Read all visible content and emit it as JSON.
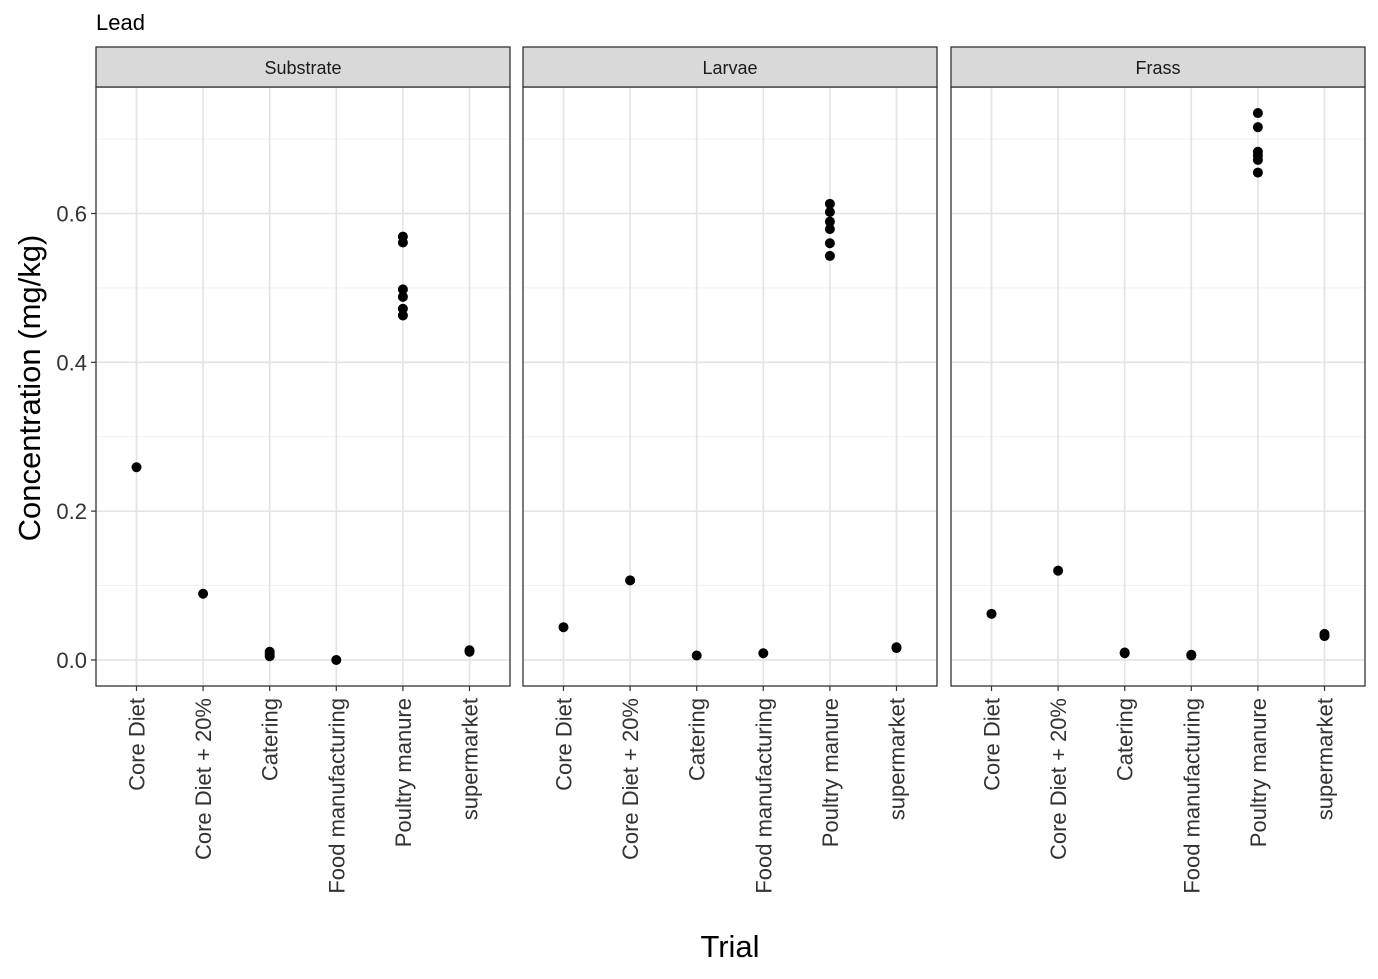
{
  "chart_data": {
    "type": "scatter",
    "title": "Lead",
    "xlabel": "Trial",
    "ylabel": "Concentration (mg/kg)",
    "ylim": [
      -0.035,
      0.77
    ],
    "yticks": [
      "0.0",
      "0.2",
      "0.4",
      "0.6"
    ],
    "ytick_values": [
      0.0,
      0.2,
      0.4,
      0.6
    ],
    "categories": [
      "Core Diet",
      "Core Diet + 20%",
      "Catering",
      "Food manufacturing",
      "Poultry manure",
      "supermarket"
    ],
    "grid": true,
    "legend": "none",
    "point_color": "#000000",
    "panels": [
      {
        "name": "Substrate",
        "points": [
          {
            "category": "Core Diet",
            "values": [
              0.259
            ]
          },
          {
            "category": "Core Diet + 20%",
            "values": [
              0.089
            ]
          },
          {
            "category": "Catering",
            "values": [
              0.011,
              0.008,
              0.005
            ]
          },
          {
            "category": "Food manufacturing",
            "values": [
              0.0
            ]
          },
          {
            "category": "Poultry manure",
            "values": [
              0.569,
              0.561,
              0.498,
              0.488,
              0.472,
              0.463
            ]
          },
          {
            "category": "supermarket",
            "values": [
              0.013,
              0.011
            ]
          }
        ]
      },
      {
        "name": "Larvae",
        "points": [
          {
            "category": "Core Diet",
            "values": [
              0.044
            ]
          },
          {
            "category": "Core Diet + 20%",
            "values": [
              0.107
            ]
          },
          {
            "category": "Catering",
            "values": [
              0.006
            ]
          },
          {
            "category": "Food manufacturing",
            "values": [
              0.009
            ]
          },
          {
            "category": "Poultry manure",
            "values": [
              0.613,
              0.602,
              0.589,
              0.579,
              0.56,
              0.543
            ]
          },
          {
            "category": "supermarket",
            "values": [
              0.017,
              0.016
            ]
          }
        ]
      },
      {
        "name": "Frass",
        "points": [
          {
            "category": "Core Diet",
            "values": [
              0.062
            ]
          },
          {
            "category": "Core Diet + 20%",
            "values": [
              0.12
            ]
          },
          {
            "category": "Catering",
            "values": [
              0.01,
              0.009
            ]
          },
          {
            "category": "Food manufacturing",
            "values": [
              0.007,
              0.006
            ]
          },
          {
            "category": "Poultry manure",
            "values": [
              0.735,
              0.716,
              0.683,
              0.678,
              0.672,
              0.655
            ]
          },
          {
            "category": "supermarket",
            "values": [
              0.035,
              0.032
            ]
          }
        ]
      }
    ]
  }
}
